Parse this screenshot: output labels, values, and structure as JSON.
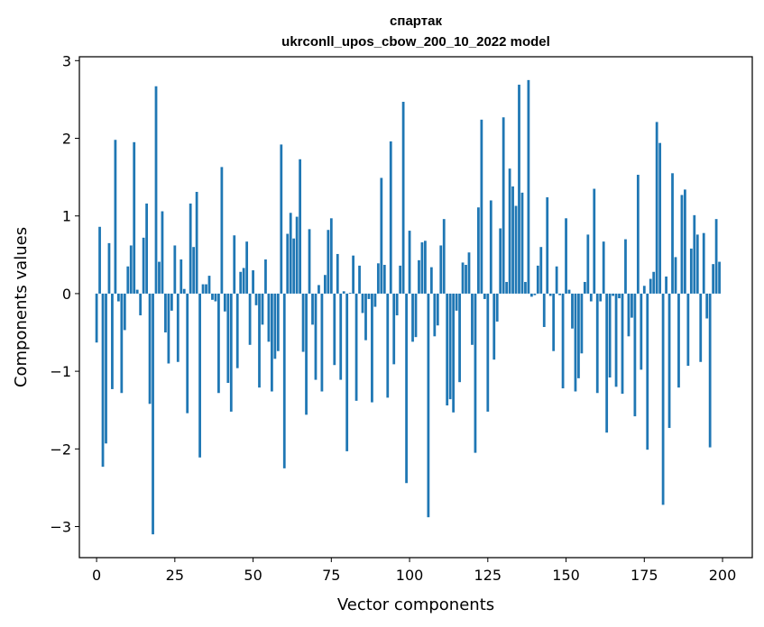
{
  "chart_data": {
    "type": "bar",
    "title_line1": "спартак",
    "title_line2": "ukrconll_upos_cbow_200_10_2022 model",
    "xlabel": "Vector components",
    "ylabel": "Components values",
    "xlim": [
      -5.5,
      209.5
    ],
    "ylim": [
      -3.4,
      3.05
    ],
    "xticks": [
      0,
      25,
      50,
      75,
      100,
      125,
      150,
      175,
      200
    ],
    "yticks": [
      -3,
      -2,
      -1,
      0,
      1,
      2,
      3
    ],
    "ytick_labels": [
      "−3",
      "−2",
      "−1",
      "0",
      "1",
      "2",
      "3"
    ],
    "bar_color": "#1f77b4",
    "grid": false,
    "x": [
      0,
      1,
      2,
      3,
      4,
      5,
      6,
      7,
      8,
      9,
      10,
      11,
      12,
      13,
      14,
      15,
      16,
      17,
      18,
      19,
      20,
      21,
      22,
      23,
      24,
      25,
      26,
      27,
      28,
      29,
      30,
      31,
      32,
      33,
      34,
      35,
      36,
      37,
      38,
      39,
      40,
      41,
      42,
      43,
      44,
      45,
      46,
      47,
      48,
      49,
      50,
      51,
      52,
      53,
      54,
      55,
      56,
      57,
      58,
      59,
      60,
      61,
      62,
      63,
      64,
      65,
      66,
      67,
      68,
      69,
      70,
      71,
      72,
      73,
      74,
      75,
      76,
      77,
      78,
      79,
      80,
      81,
      82,
      83,
      84,
      85,
      86,
      87,
      88,
      89,
      90,
      91,
      92,
      93,
      94,
      95,
      96,
      97,
      98,
      99,
      100,
      101,
      102,
      103,
      104,
      105,
      106,
      107,
      108,
      109,
      110,
      111,
      112,
      113,
      114,
      115,
      116,
      117,
      118,
      119,
      120,
      121,
      122,
      123,
      124,
      125,
      126,
      127,
      128,
      129,
      130,
      131,
      132,
      133,
      134,
      135,
      136,
      137,
      138,
      139,
      140,
      141,
      142,
      143,
      144,
      145,
      146,
      147,
      148,
      149,
      150,
      151,
      152,
      153,
      154,
      155,
      156,
      157,
      158,
      159,
      160,
      161,
      162,
      163,
      164,
      165,
      166,
      167,
      168,
      169,
      170,
      171,
      172,
      173,
      174,
      175,
      176,
      177,
      178,
      179,
      180,
      181,
      182,
      183,
      184,
      185,
      186,
      187,
      188,
      189,
      190,
      191,
      192,
      193,
      194,
      195,
      196,
      197,
      198,
      199
    ],
    "values": [
      -0.63,
      0.86,
      -2.23,
      -1.93,
      0.65,
      -1.23,
      1.98,
      -0.1,
      -1.28,
      -0.47,
      0.35,
      0.62,
      1.95,
      0.05,
      -0.28,
      0.72,
      1.16,
      -1.42,
      -3.1,
      2.67,
      0.41,
      1.06,
      -0.5,
      -0.9,
      -0.22,
      0.62,
      -0.88,
      0.44,
      0.06,
      -1.54,
      1.16,
      0.6,
      1.31,
      -2.11,
      0.12,
      0.12,
      0.23,
      -0.08,
      -0.1,
      -1.28,
      1.63,
      -0.23,
      -1.15,
      -1.52,
      0.75,
      -0.96,
      0.28,
      0.33,
      0.67,
      -0.66,
      0.3,
      -0.15,
      -1.21,
      -0.4,
      0.44,
      -0.62,
      -1.26,
      -0.84,
      -0.74,
      1.92,
      -2.25,
      0.77,
      1.04,
      0.71,
      0.99,
      1.73,
      -0.75,
      -1.56,
      0.83,
      -0.4,
      -1.11,
      0.11,
      -1.26,
      0.24,
      0.82,
      0.97,
      -0.92,
      0.51,
      -1.11,
      0.03,
      -2.03,
      0.01,
      0.49,
      -1.38,
      0.36,
      -0.25,
      -0.6,
      -0.07,
      -1.4,
      -0.17,
      0.39,
      1.49,
      0.37,
      -1.34,
      1.96,
      -0.91,
      -0.28,
      0.36,
      2.47,
      -2.44,
      0.81,
      -0.62,
      -0.56,
      0.43,
      0.66,
      0.68,
      -2.88,
      0.34,
      -0.55,
      -0.41,
      0.62,
      0.96,
      -1.44,
      -1.36,
      -1.53,
      -0.22,
      -1.14,
      0.4,
      0.37,
      0.53,
      -0.66,
      -2.05,
      1.11,
      2.24,
      -0.07,
      -1.52,
      1.2,
      -0.85,
      -0.36,
      0.84,
      2.27,
      0.15,
      1.61,
      1.38,
      1.13,
      2.69,
      1.3,
      0.15,
      2.75,
      -0.04,
      -0.02,
      0.36,
      0.6,
      -0.43,
      1.24,
      -0.03,
      -0.74,
      0.35,
      -0.02,
      -1.22,
      0.97,
      0.05,
      -0.45,
      -1.26,
      -1.09,
      -0.77,
      0.15,
      0.76,
      -0.1,
      1.35,
      -1.28,
      -0.1,
      0.67,
      -1.79,
      -1.08,
      -0.03,
      -1.2,
      -0.06,
      -1.29,
      0.7,
      -0.55,
      -0.31,
      -1.58,
      1.53,
      -0.98,
      0.1,
      -2.01,
      0.19,
      0.28,
      2.21,
      1.94,
      -2.72,
      0.22,
      -1.73,
      1.55,
      0.47,
      -1.21,
      1.27,
      1.34,
      -0.93,
      0.58,
      1.01,
      0.76,
      -0.88,
      0.78,
      -0.32,
      -1.98,
      0.38,
      0.96,
      0.41
    ]
  }
}
